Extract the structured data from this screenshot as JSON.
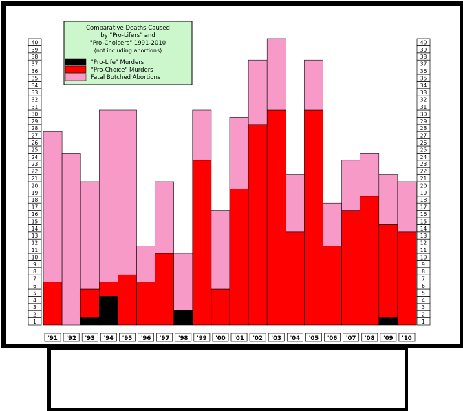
{
  "chart_data": {
    "type": "bar",
    "stacked": true,
    "title": "Comparative Deaths Caused by \"Pro-Lifers\" and \"Pro-Choicers\" 1991-2010",
    "subtitle": "(not including abortions)",
    "categories": [
      "'91",
      "'92",
      "'93",
      "'94",
      "'95",
      "'96",
      "'97",
      "'98",
      "'99",
      "'00",
      "'01",
      "'02",
      "'03",
      "'04",
      "'05",
      "'06",
      "'07",
      "'08",
      "'09",
      "'10"
    ],
    "series": [
      {
        "name": "\"Pro-Life\" Murders",
        "color": "#000000",
        "values": [
          0,
          0,
          1,
          4,
          0,
          0,
          0,
          2,
          0,
          0,
          0,
          0,
          0,
          0,
          0,
          0,
          0,
          0,
          1,
          0
        ]
      },
      {
        "name": "\"Pro-Choice\" Murders",
        "color": "#ff0000",
        "values": [
          6,
          0,
          4,
          2,
          7,
          6,
          10,
          0,
          23,
          5,
          19,
          28,
          30,
          13,
          30,
          11,
          16,
          18,
          13,
          13
        ]
      },
      {
        "name": "Fatal Botched Abortions",
        "color": "#f79ac8",
        "values": [
          21,
          24,
          15,
          24,
          23,
          5,
          10,
          8,
          7,
          11,
          10,
          9,
          10,
          8,
          7,
          6,
          7,
          6,
          7,
          7
        ]
      }
    ],
    "y_ticks": [
      "1",
      "2",
      "3",
      "4",
      "5",
      "6",
      "7",
      "8",
      "9",
      "10",
      "11",
      "12",
      "13",
      "14",
      "15",
      "16",
      "17",
      "18",
      "19",
      "20",
      "21",
      "22",
      "23",
      "24",
      "25",
      "26",
      "27",
      "28",
      "29",
      "30",
      "31",
      "32",
      "33",
      "34",
      "35",
      "36",
      "37",
      "38",
      "39",
      "40"
    ],
    "ylim": [
      0,
      40
    ],
    "legend_position": "top-left",
    "grid": false
  }
}
